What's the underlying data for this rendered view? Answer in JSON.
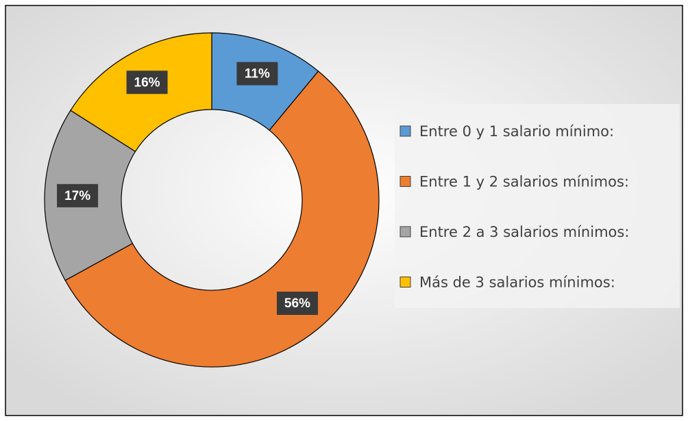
{
  "chart_data": {
    "type": "donut",
    "categories": [
      "Entre 0 y 1 salario mínimo:",
      "Entre 1 y 2 salarios mínimos:",
      "Entre 2 a 3 salarios mínimos:",
      "Más de 3 salarios mínimos:"
    ],
    "values": [
      11,
      56,
      17,
      16
    ],
    "value_labels": [
      "11%",
      "56%",
      "17%",
      "16%"
    ],
    "colors": [
      "#5b9bd5",
      "#ed7d31",
      "#a5a5a5",
      "#ffc000"
    ],
    "legend": "right"
  }
}
